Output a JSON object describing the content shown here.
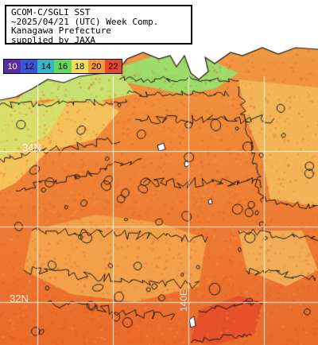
{
  "header": {
    "lines": [
      "GCOM-C/SGLI SST",
      "~2025/04/21 (UTC) Week Comp.",
      "Kanagawa Prefecture",
      "supplied by JAXA"
    ]
  },
  "legend": {
    "items": [
      {
        "label": "10",
        "color": "#5a2ca8"
      },
      {
        "label": "12",
        "color": "#3b55d6"
      },
      {
        "label": "14",
        "color": "#32b7c4"
      },
      {
        "label": "16",
        "color": "#66d85e"
      },
      {
        "label": "18",
        "color": "#f4dc5a"
      },
      {
        "label": "20",
        "color": "#f49a3e"
      },
      {
        "label": "22",
        "color": "#e8452a"
      }
    ]
  },
  "grid": {
    "lat_labels": [
      "34N",
      "32N"
    ],
    "lon_labels": [
      "140E"
    ]
  },
  "colors": {
    "land": "#ffffff",
    "warm_sea": "#e96a2a",
    "mid_sea": "#f08a3a",
    "cool_sea": "#f4c25a",
    "coast_green": "#9ddc6a",
    "contour": "#1a1a1a",
    "gridline": "#ffffff"
  }
}
